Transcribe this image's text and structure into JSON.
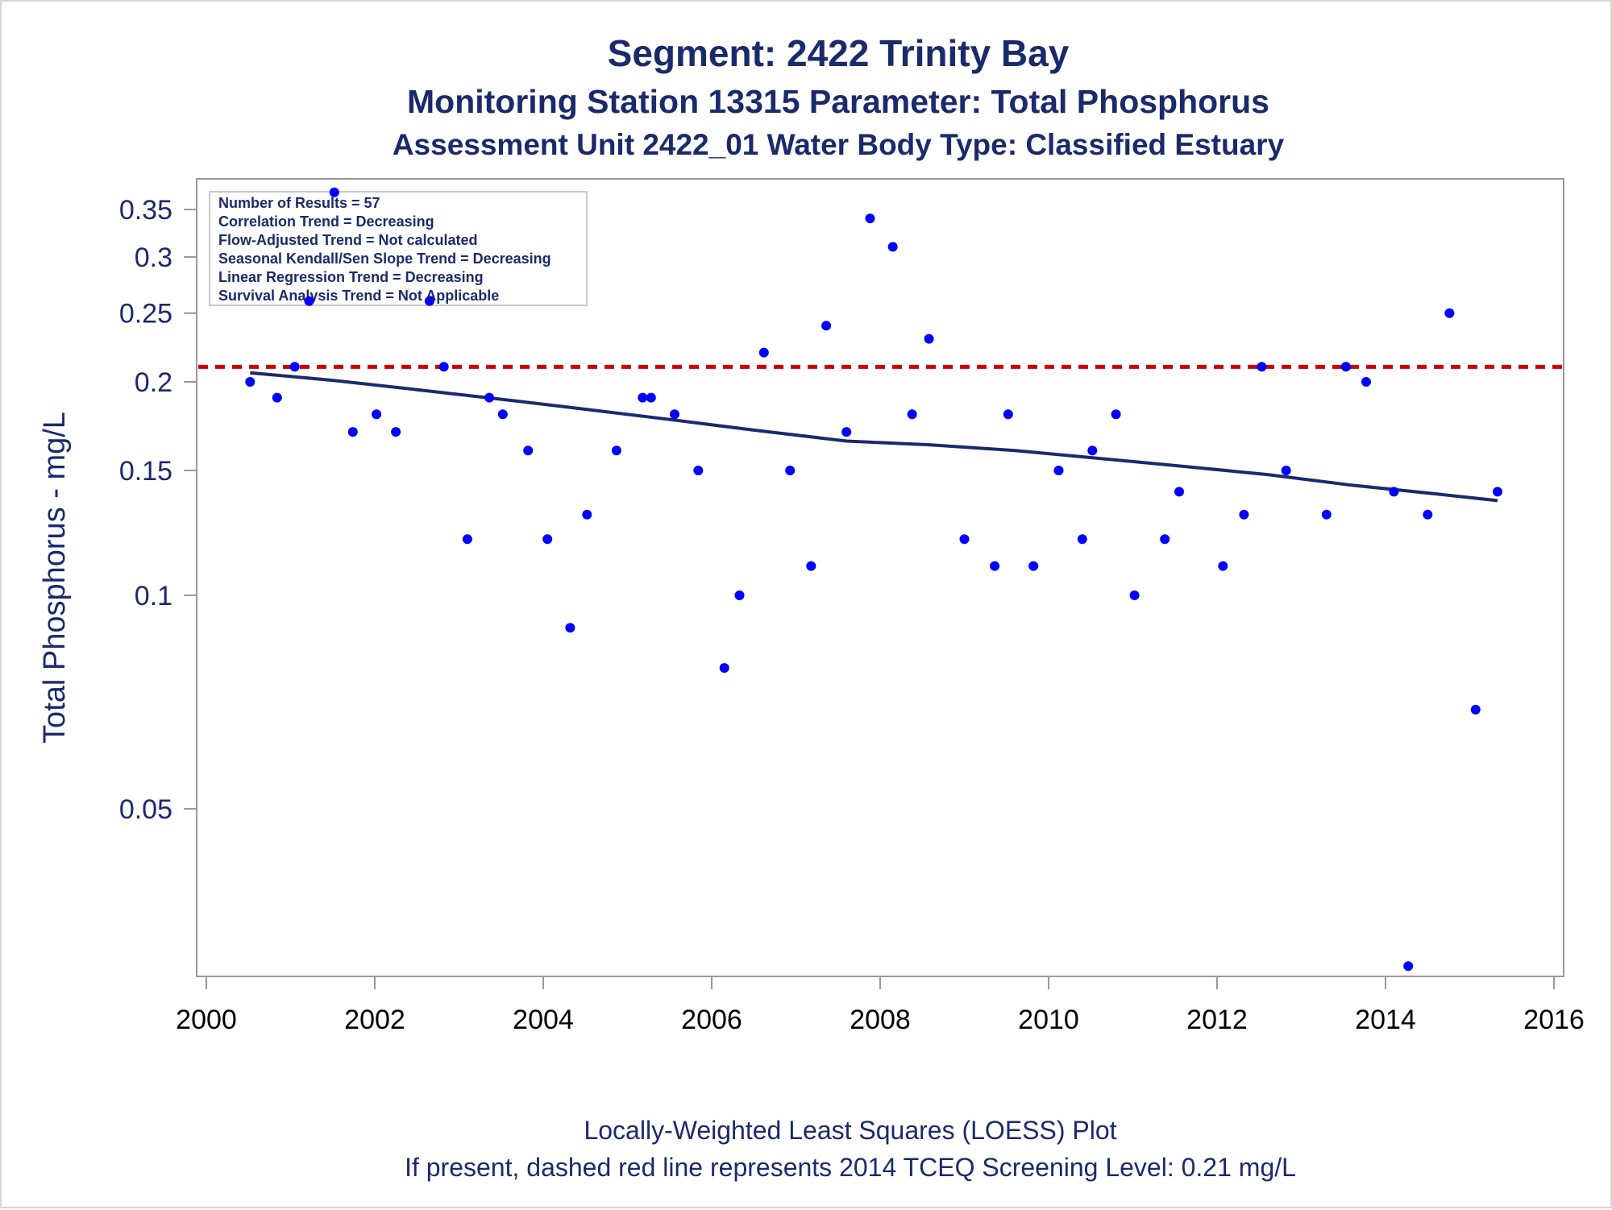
{
  "chart_data": {
    "type": "scatter",
    "title": "Segment: 2422  Trinity Bay",
    "subtitle": "Monitoring Station 13315 Parameter: Total Phosphorus",
    "subtitle2": "Assessment Unit 2422_01   Water Body Type: Classified Estuary",
    "ylabel": "Total Phosphorus - mg/L",
    "y_scale": "log",
    "xlim": [
      2000,
      2016
    ],
    "ylim": [
      0.03,
      0.38
    ],
    "x_ticks": [
      "2000",
      "2002",
      "2004",
      "2006",
      "2008",
      "2010",
      "2012",
      "2014",
      "2016"
    ],
    "y_ticks": [
      "0.35",
      "0.3",
      "0.25",
      "0.2",
      "0.15",
      "0.1",
      "0.05"
    ],
    "stats_box": [
      "Number of Results = 57",
      "Correlation Trend = Decreasing",
      "Flow-Adjusted Trend = Not calculated",
      "Seasonal Kendall/Sen Slope Trend = Decreasing",
      "Linear Regression Trend = Decreasing",
      "Survival Analysis Trend = Not Applicable"
    ],
    "footnote1": "Locally-Weighted Least Squares (LOESS) Plot",
    "footnote2": "If present, dashed red line represents 2014 TCEQ Screening Level: 0.21 mg/L",
    "screening_level": 0.21,
    "points": [
      [
        2000.52,
        0.2
      ],
      [
        2000.84,
        0.19
      ],
      [
        2001.05,
        0.21
      ],
      [
        2001.22,
        0.26
      ],
      [
        2001.52,
        0.37
      ],
      [
        2001.74,
        0.17
      ],
      [
        2002.02,
        0.18
      ],
      [
        2002.25,
        0.17
      ],
      [
        2002.65,
        0.26
      ],
      [
        2002.82,
        0.21
      ],
      [
        2003.1,
        0.12
      ],
      [
        2003.36,
        0.19
      ],
      [
        2003.52,
        0.18
      ],
      [
        2003.82,
        0.16
      ],
      [
        2004.05,
        0.12
      ],
      [
        2004.32,
        0.09
      ],
      [
        2004.52,
        0.13
      ],
      [
        2004.87,
        0.16
      ],
      [
        2005.18,
        0.19
      ],
      [
        2005.28,
        0.19
      ],
      [
        2005.56,
        0.18
      ],
      [
        2005.84,
        0.15
      ],
      [
        2006.15,
        0.079
      ],
      [
        2006.33,
        0.1
      ],
      [
        2006.62,
        0.22
      ],
      [
        2006.93,
        0.15
      ],
      [
        2007.18,
        0.11
      ],
      [
        2007.36,
        0.24
      ],
      [
        2007.6,
        0.17
      ],
      [
        2007.88,
        0.34
      ],
      [
        2008.15,
        0.31
      ],
      [
        2008.38,
        0.18
      ],
      [
        2008.58,
        0.23
      ],
      [
        2009.0,
        0.12
      ],
      [
        2009.36,
        0.11
      ],
      [
        2009.52,
        0.18
      ],
      [
        2009.82,
        0.11
      ],
      [
        2010.12,
        0.15
      ],
      [
        2010.4,
        0.12
      ],
      [
        2010.52,
        0.16
      ],
      [
        2010.8,
        0.18
      ],
      [
        2011.02,
        0.1
      ],
      [
        2011.38,
        0.12
      ],
      [
        2011.55,
        0.14
      ],
      [
        2012.07,
        0.11
      ],
      [
        2012.32,
        0.13
      ],
      [
        2012.53,
        0.21
      ],
      [
        2012.82,
        0.15
      ],
      [
        2013.3,
        0.13
      ],
      [
        2013.53,
        0.21
      ],
      [
        2013.77,
        0.2
      ],
      [
        2014.1,
        0.14
      ],
      [
        2014.27,
        0.03
      ],
      [
        2014.5,
        0.13
      ],
      [
        2014.76,
        0.25
      ],
      [
        2015.07,
        0.069
      ],
      [
        2015.33,
        0.14
      ]
    ],
    "loess": [
      [
        2000.52,
        0.206
      ],
      [
        2001.5,
        0.201
      ],
      [
        2002.5,
        0.195
      ],
      [
        2003.5,
        0.189
      ],
      [
        2004.5,
        0.183
      ],
      [
        2005.5,
        0.177
      ],
      [
        2006.5,
        0.171
      ],
      [
        2007.6,
        0.165
      ],
      [
        2008.6,
        0.163
      ],
      [
        2009.6,
        0.16
      ],
      [
        2010.6,
        0.156
      ],
      [
        2011.6,
        0.152
      ],
      [
        2012.6,
        0.148
      ],
      [
        2013.6,
        0.143
      ],
      [
        2014.6,
        0.139
      ],
      [
        2015.33,
        0.136
      ]
    ],
    "colors": {
      "points": "#0000ff",
      "loess": "#1b2a6b",
      "screening": "#cc0000",
      "text": "#1b2a6b",
      "axis": "#999999"
    }
  }
}
